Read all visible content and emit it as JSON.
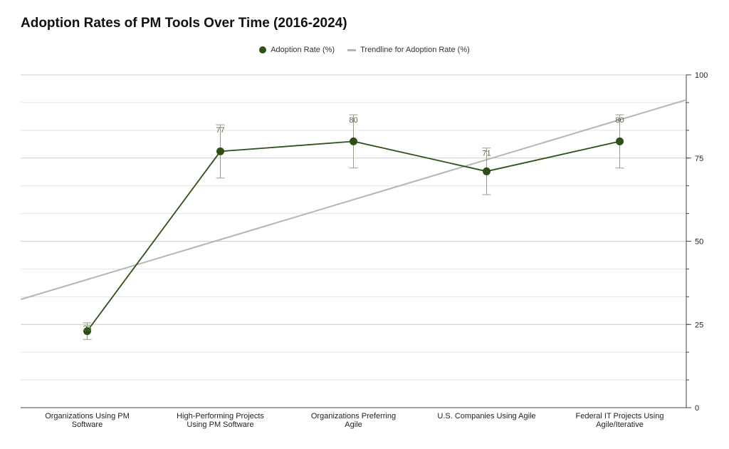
{
  "chart_data": {
    "type": "line",
    "title": "Adoption Rates of PM Tools Over Time (2016-2024)",
    "categories": [
      "Organizations Using PM Software",
      "High-Performing Projects Using PM Software",
      "Organizations Preferring Agile",
      "U.S. Companies Using Agile",
      "Federal IT Projects Using Agile/Iterative"
    ],
    "series": [
      {
        "name": "Adoption Rate (%)",
        "values": [
          23,
          77,
          80,
          71,
          80
        ],
        "error_low": [
          20.5,
          69,
          72,
          64,
          72
        ],
        "error_high": [
          25.5,
          85,
          88,
          78,
          88
        ],
        "color": "#2d5016"
      },
      {
        "name": "Trendline for Adoption Rate (%)",
        "type": "trendline",
        "start": 38.5,
        "slope": 12.0,
        "color": "#b5b5b0"
      }
    ],
    "y_axis": {
      "position": "right",
      "ylim": [
        0,
        100
      ],
      "ticks": [
        0,
        25,
        50,
        75,
        100
      ]
    },
    "grid": true,
    "legend": "top-center",
    "xlabel": "",
    "ylabel": ""
  }
}
